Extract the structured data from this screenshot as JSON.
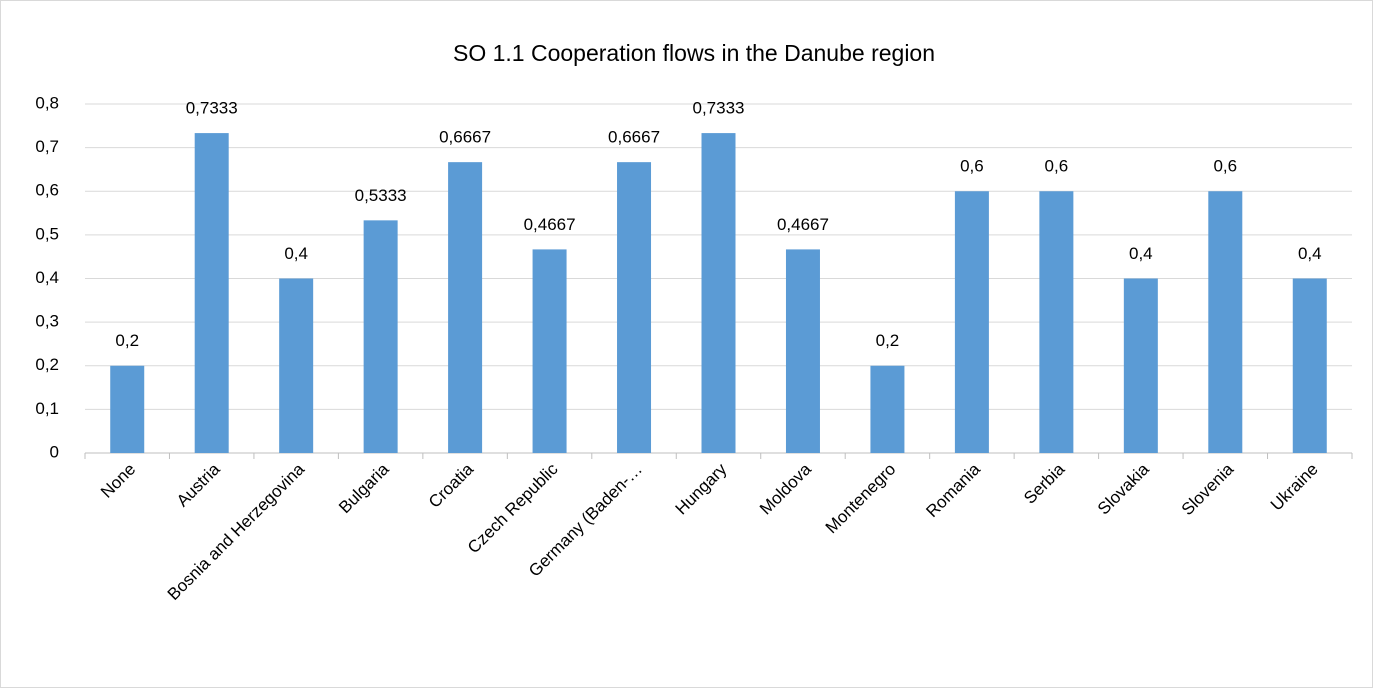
{
  "chart_data": {
    "type": "bar",
    "title": "SO 1.1 Cooperation flows in the Danube region",
    "categories": [
      "None",
      "Austria",
      "Bosnia and Herzegovina",
      "Bulgaria",
      "Croatia",
      "Czech Republic",
      "Germany (Baden-…",
      "Hungary",
      "Moldova",
      "Montenegro",
      "Romania",
      "Serbia",
      "Slovakia",
      "Slovenia",
      "Ukraine"
    ],
    "values": [
      0.2,
      0.7333,
      0.4,
      0.5333,
      0.6667,
      0.4667,
      0.6667,
      0.7333,
      0.4667,
      0.2,
      0.6,
      0.6,
      0.4,
      0.6,
      0.4
    ],
    "value_labels": [
      "0,2",
      "0,7333",
      "0,4",
      "0,5333",
      "0,6667",
      "0,4667",
      "0,6667",
      "0,7333",
      "0,4667",
      "0,2",
      "0,6",
      "0,6",
      "0,4",
      "0,6",
      "0,4"
    ],
    "color": "#5b9bd5",
    "ylim": [
      0,
      0.8
    ],
    "yticks": [
      0,
      {
        "value": 0.1,
        "label": "0,1"
      },
      {
        "value": 0.2,
        "label": "0,2"
      },
      {
        "value": 0.3,
        "label": "0,3"
      },
      {
        "value": 0.4,
        "label": "0,4"
      },
      {
        "value": 0.5,
        "label": "0,5"
      },
      {
        "value": 0.6,
        "label": "0,6"
      },
      {
        "value": 0.7,
        "label": "0,7"
      },
      {
        "value": 0.8,
        "label": "0,8"
      }
    ],
    "grid": true
  }
}
